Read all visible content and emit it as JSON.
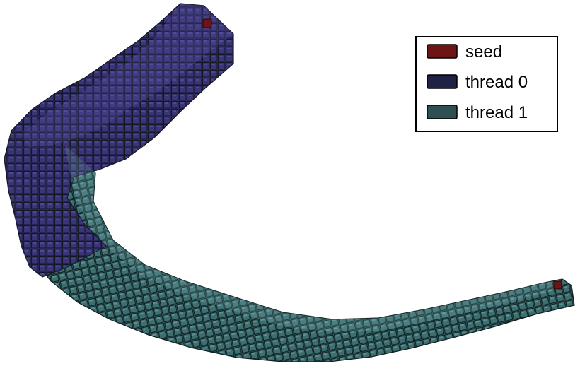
{
  "colors": {
    "seed": "#6e1414",
    "thread0": "#3a3478",
    "thread1": "#3d6f72",
    "grid_line": "#141826",
    "background": "#ffffff"
  },
  "legend": {
    "items": [
      {
        "label": "seed",
        "color": "#6e1414"
      },
      {
        "label": "thread 0",
        "color": "#1f2244"
      },
      {
        "label": "thread 1",
        "color": "#2f5052"
      }
    ]
  }
}
